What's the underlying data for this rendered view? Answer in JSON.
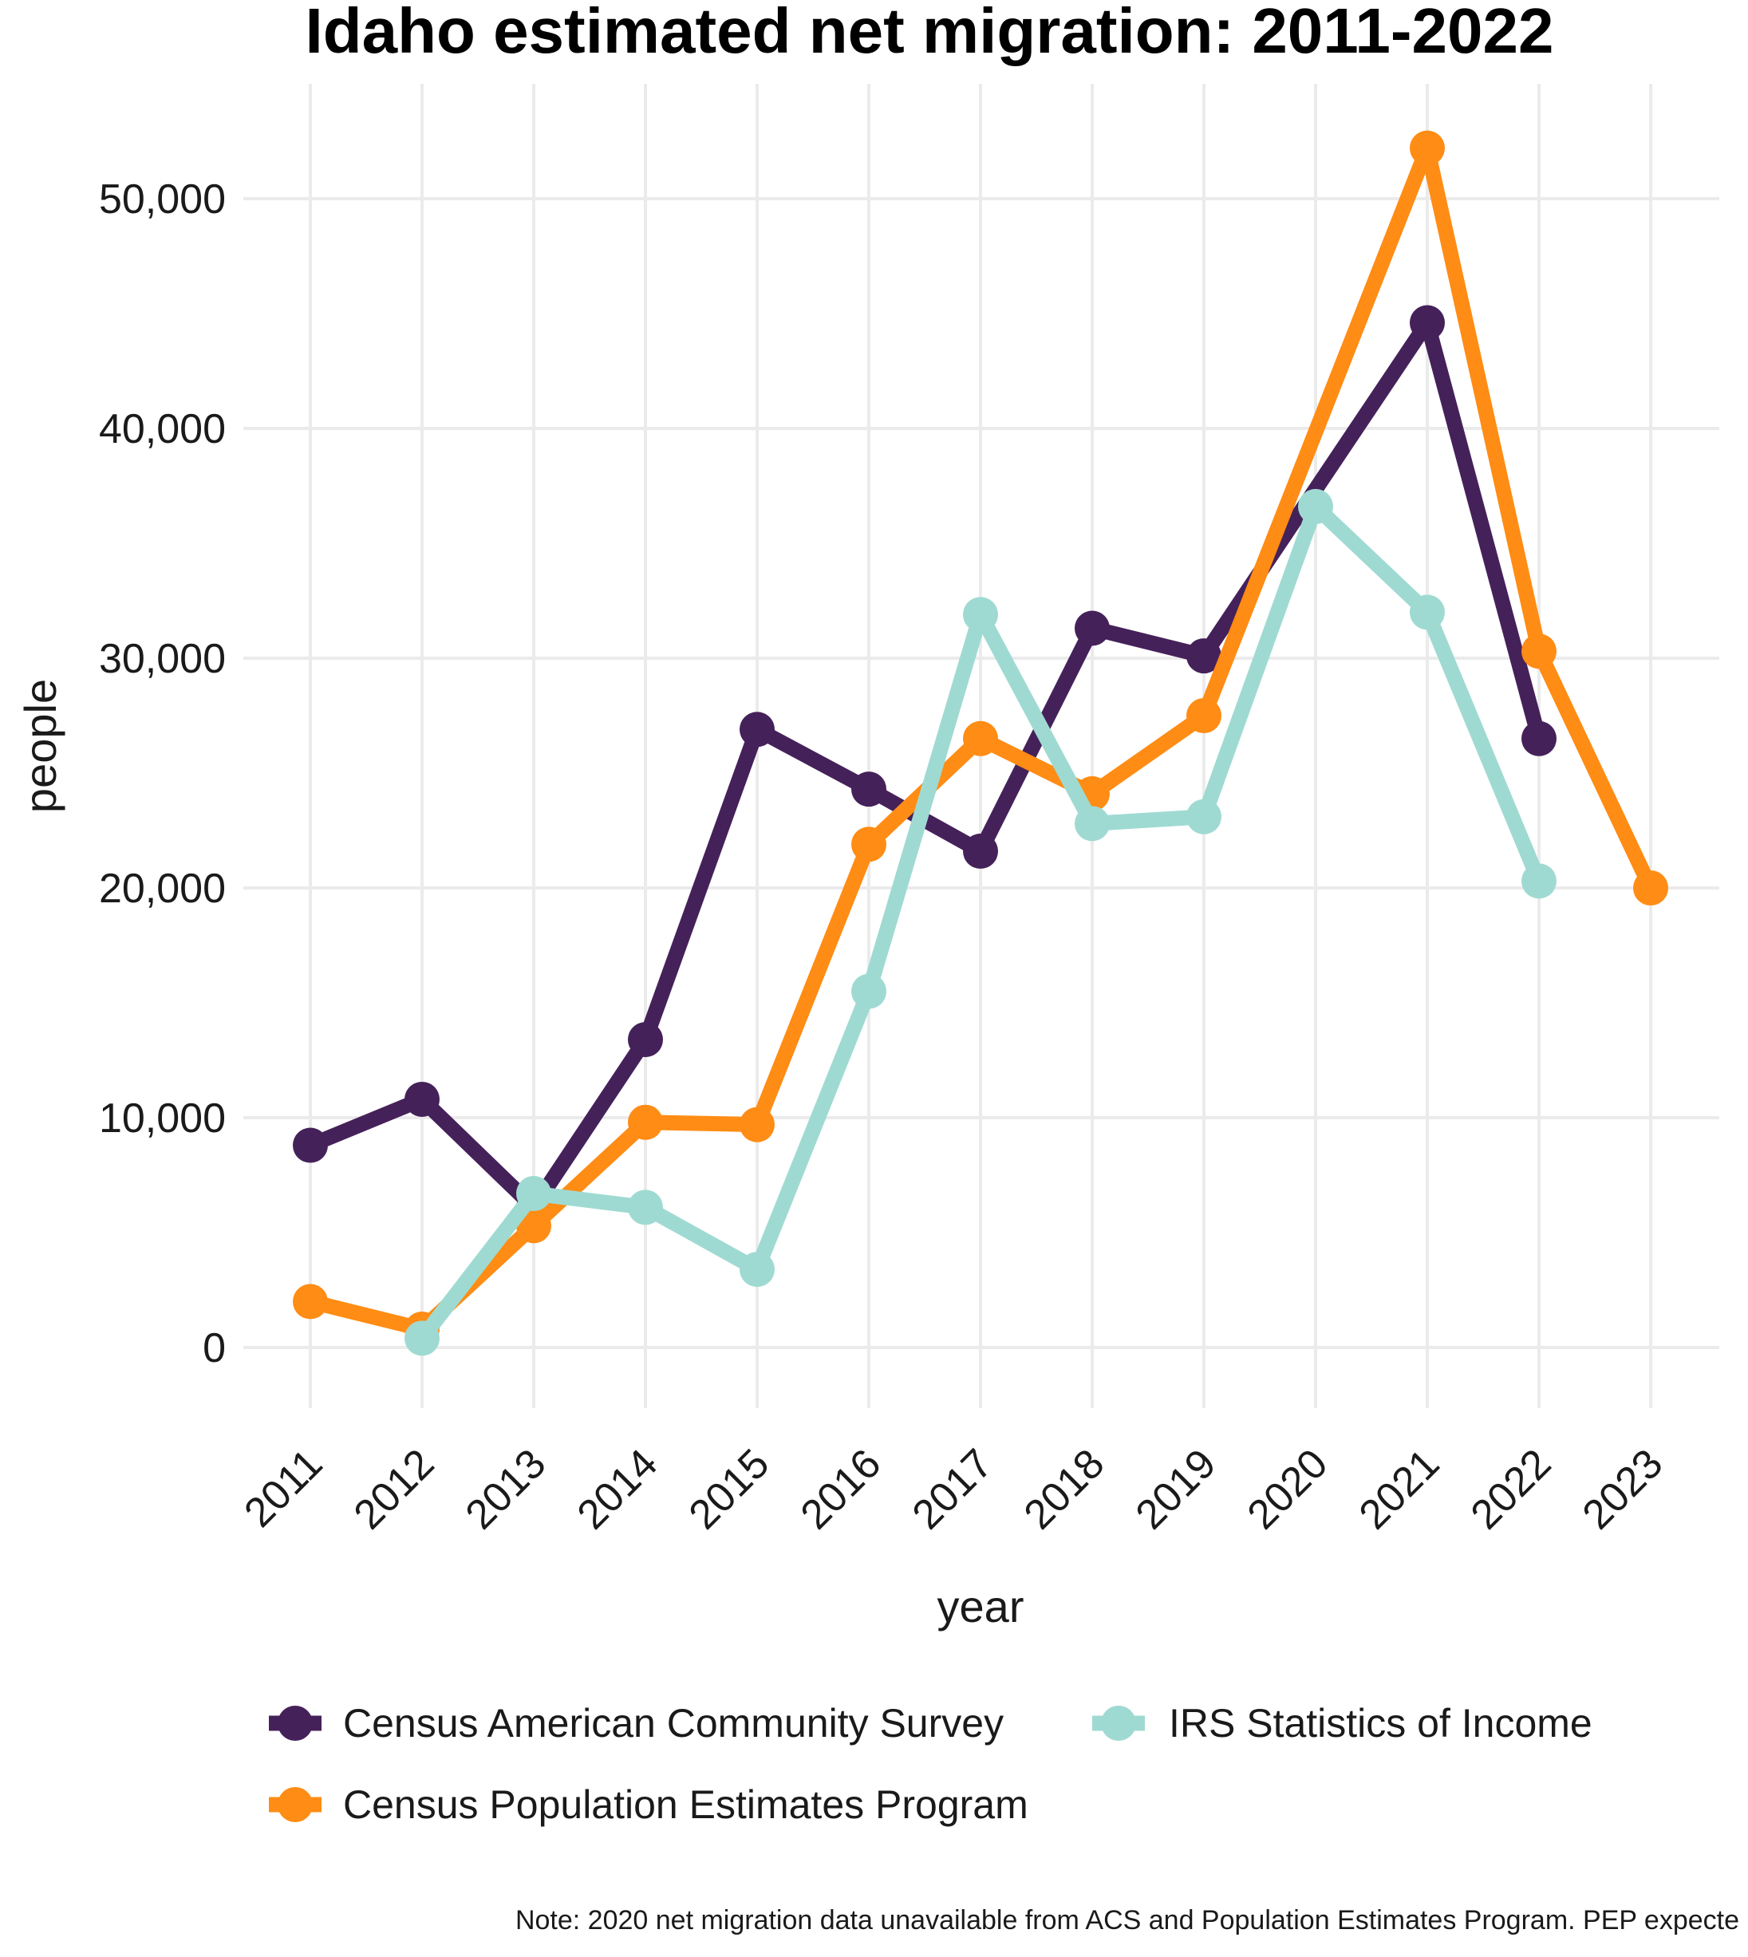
{
  "chart_data": {
    "type": "line",
    "title": "Idaho estimated net migration: 2011-2022",
    "xlabel": "year",
    "ylabel": "people",
    "x": [
      2011,
      2012,
      2013,
      2014,
      2015,
      2016,
      2017,
      2018,
      2019,
      2020,
      2021,
      2022,
      2023
    ],
    "x_tick_labels": [
      "2011",
      "2012",
      "2013",
      "2014",
      "2015",
      "2016",
      "2017",
      "2018",
      "2019",
      "2020",
      "2021",
      "2022",
      "2023"
    ],
    "y_ticks": [
      0,
      10000,
      20000,
      30000,
      40000,
      50000
    ],
    "y_tick_labels": [
      "0",
      "10,000",
      "20,000",
      "30,000",
      "40,000",
      "50,000"
    ],
    "ylim": [
      -3000,
      55000
    ],
    "grid": true,
    "legend_position": "bottom",
    "series": [
      {
        "name": "Census American Community Survey",
        "color": "#45215a",
        "points": [
          {
            "x": 2011,
            "y": 8800
          },
          {
            "x": 2012,
            "y": 10800
          },
          {
            "x": 2013,
            "y": 6100
          },
          {
            "x": 2014,
            "y": 13400
          },
          {
            "x": 2015,
            "y": 26900
          },
          {
            "x": 2016,
            "y": 24300
          },
          {
            "x": 2017,
            "y": 21600
          },
          {
            "x": 2018,
            "y": 31300
          },
          {
            "x": 2019,
            "y": 30100
          },
          {
            "x": 2021,
            "y": 44600
          },
          {
            "x": 2022,
            "y": 26500
          }
        ]
      },
      {
        "name": "Census Population Estimates Program",
        "color": "#ff8c14",
        "points": [
          {
            "x": 2011,
            "y": 2000
          },
          {
            "x": 2012,
            "y": 800
          },
          {
            "x": 2013,
            "y": 5300
          },
          {
            "x": 2014,
            "y": 9800
          },
          {
            "x": 2015,
            "y": 9700
          },
          {
            "x": 2016,
            "y": 21900
          },
          {
            "x": 2017,
            "y": 26500
          },
          {
            "x": 2018,
            "y": 24100
          },
          {
            "x": 2019,
            "y": 27500
          },
          {
            "x": 2021,
            "y": 52200
          },
          {
            "x": 2022,
            "y": 30300
          },
          {
            "x": 2023,
            "y": 20000
          }
        ]
      },
      {
        "name": "IRS Statistics of Income",
        "color": "#9fdad2",
        "points": [
          {
            "x": 2012,
            "y": 400
          },
          {
            "x": 2013,
            "y": 6700
          },
          {
            "x": 2014,
            "y": 6100
          },
          {
            "x": 2015,
            "y": 3400
          },
          {
            "x": 2016,
            "y": 15500
          },
          {
            "x": 2017,
            "y": 31900
          },
          {
            "x": 2018,
            "y": 22800
          },
          {
            "x": 2019,
            "y": 23100
          },
          {
            "x": 2020,
            "y": 36600
          },
          {
            "x": 2021,
            "y": 32000
          },
          {
            "x": 2022,
            "y": 20300
          }
        ]
      }
    ]
  },
  "note": "Note: 2020 net migration data unavailable from ACS and Population Estimates Program. PEP expecte"
}
